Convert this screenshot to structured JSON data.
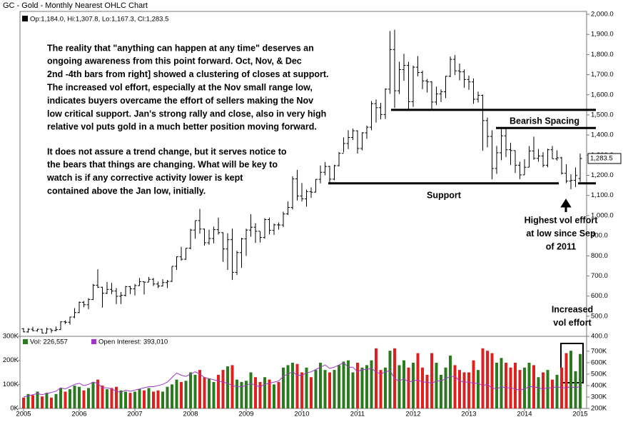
{
  "chart_data": {
    "type": "ohlc",
    "title": "GC - Gold - Monthly Nearest OHLC Chart",
    "ohlc_legend": "Op:1,184.0, Hi:1,307.8, Lo:1,167.3, Cl:1,283.5",
    "categories": [
      "2005",
      null,
      null,
      null,
      null,
      null,
      null,
      null,
      null,
      null,
      null,
      null,
      "2006",
      null,
      null,
      null,
      null,
      null,
      null,
      null,
      null,
      null,
      null,
      null,
      "2007",
      null,
      null,
      null,
      null,
      null,
      null,
      null,
      null,
      null,
      null,
      null,
      "2008",
      null,
      null,
      null,
      null,
      null,
      null,
      null,
      null,
      null,
      null,
      null,
      "2009",
      null,
      null,
      null,
      null,
      null,
      null,
      null,
      null,
      null,
      null,
      null,
      "2010",
      null,
      null,
      null,
      null,
      null,
      null,
      null,
      null,
      null,
      null,
      null,
      "2011",
      null,
      null,
      null,
      null,
      null,
      null,
      null,
      null,
      null,
      null,
      null,
      "2012",
      null,
      null,
      null,
      null,
      null,
      null,
      null,
      null,
      null,
      null,
      null,
      "2013",
      null,
      null,
      null,
      null,
      null,
      null,
      null,
      null,
      null,
      null,
      null,
      "2014",
      null,
      null,
      null,
      null,
      null,
      null,
      null,
      null,
      null,
      null,
      null,
      "2015"
    ],
    "ohlc": [
      [
        438,
        441,
        420,
        422
      ],
      [
        422,
        440,
        418,
        435
      ],
      [
        435,
        447,
        425,
        428
      ],
      [
        428,
        438,
        423,
        435
      ],
      [
        435,
        437,
        414,
        416
      ],
      [
        416,
        443,
        415,
        436
      ],
      [
        436,
        437,
        417,
        429
      ],
      [
        429,
        448,
        425,
        433
      ],
      [
        433,
        475,
        432,
        472
      ],
      [
        472,
        479,
        461,
        470
      ],
      [
        470,
        497,
        458,
        496
      ],
      [
        496,
        540,
        490,
        518
      ],
      [
        518,
        573,
        515,
        569
      ],
      [
        569,
        575,
        545,
        557
      ],
      [
        557,
        590,
        535,
        583
      ],
      [
        583,
        660,
        580,
        654
      ],
      [
        654,
        733,
        640,
        644
      ],
      [
        644,
        646,
        543,
        614
      ],
      [
        614,
        670,
        610,
        633
      ],
      [
        633,
        665,
        610,
        625
      ],
      [
        625,
        640,
        560,
        599
      ],
      [
        599,
        620,
        560,
        604
      ],
      [
        604,
        650,
        598,
        647
      ],
      [
        647,
        650,
        610,
        636
      ],
      [
        636,
        660,
        603,
        652
      ],
      [
        652,
        690,
        650,
        672
      ],
      [
        672,
        672,
        608,
        669
      ],
      [
        669,
        695,
        670,
        683
      ],
      [
        683,
        690,
        650,
        660
      ],
      [
        660,
        672,
        640,
        650
      ],
      [
        650,
        684,
        648,
        667
      ],
      [
        667,
        680,
        640,
        673
      ],
      [
        673,
        748,
        670,
        748
      ],
      [
        748,
        797,
        730,
        795
      ],
      [
        795,
        845,
        776,
        783
      ],
      [
        783,
        838,
        780,
        838
      ],
      [
        838,
        934,
        832,
        928
      ],
      [
        928,
        975,
        885,
        975
      ],
      [
        975,
        1033,
        910,
        933
      ],
      [
        933,
        935,
        851,
        865
      ],
      [
        865,
        930,
        855,
        886
      ],
      [
        886,
        945,
        862,
        930
      ],
      [
        930,
        990,
        905,
        915
      ],
      [
        915,
        917,
        770,
        834
      ],
      [
        834,
        912,
        730,
        880
      ],
      [
        880,
        935,
        680,
        718
      ],
      [
        718,
        825,
        705,
        816
      ],
      [
        816,
        889,
        740,
        884
      ],
      [
        884,
        935,
        800,
        928
      ],
      [
        928,
        1007,
        895,
        942
      ],
      [
        942,
        962,
        864,
        922
      ],
      [
        922,
        921,
        866,
        891
      ],
      [
        891,
        987,
        885,
        980
      ],
      [
        980,
        990,
        906,
        927
      ],
      [
        927,
        960,
        904,
        954
      ],
      [
        954,
        966,
        930,
        953
      ],
      [
        953,
        1019,
        943,
        1008
      ],
      [
        1008,
        1070,
        1003,
        1040
      ],
      [
        1040,
        1195,
        1030,
        1182
      ],
      [
        1182,
        1227,
        1075,
        1097
      ],
      [
        1097,
        1162,
        1070,
        1083
      ],
      [
        1083,
        1129,
        1045,
        1119
      ],
      [
        1119,
        1140,
        1088,
        1116
      ],
      [
        1116,
        1181,
        1115,
        1180
      ],
      [
        1180,
        1249,
        1160,
        1215
      ],
      [
        1215,
        1266,
        1200,
        1244
      ],
      [
        1244,
        1247,
        1156,
        1181
      ],
      [
        1181,
        1252,
        1175,
        1248
      ],
      [
        1248,
        1316,
        1244,
        1309
      ],
      [
        1309,
        1388,
        1314,
        1358
      ],
      [
        1358,
        1424,
        1330,
        1388
      ],
      [
        1388,
        1432,
        1375,
        1421
      ],
      [
        1421,
        1423,
        1308,
        1333
      ],
      [
        1333,
        1414,
        1324,
        1411
      ],
      [
        1411,
        1447,
        1381,
        1439
      ],
      [
        1439,
        1569,
        1424,
        1556
      ],
      [
        1556,
        1577,
        1462,
        1536
      ],
      [
        1536,
        1560,
        1478,
        1502
      ],
      [
        1502,
        1632,
        1480,
        1628
      ],
      [
        1628,
        1917,
        1605,
        1825
      ],
      [
        1825,
        1923,
        1535,
        1620
      ],
      [
        1620,
        1764,
        1604,
        1725
      ],
      [
        1725,
        1804,
        1670,
        1746
      ],
      [
        1746,
        1764,
        1523,
        1566
      ],
      [
        1566,
        1745,
        1540,
        1737
      ],
      [
        1737,
        1792,
        1692,
        1711
      ],
      [
        1711,
        1720,
        1628,
        1669
      ],
      [
        1669,
        1678,
        1611,
        1664
      ],
      [
        1664,
        1668,
        1527,
        1564
      ],
      [
        1564,
        1641,
        1549,
        1604
      ],
      [
        1604,
        1627,
        1564,
        1615
      ],
      [
        1615,
        1694,
        1583,
        1692
      ],
      [
        1692,
        1790,
        1688,
        1776
      ],
      [
        1776,
        1798,
        1698,
        1719
      ],
      [
        1719,
        1755,
        1672,
        1714
      ],
      [
        1714,
        1726,
        1635,
        1676
      ],
      [
        1676,
        1696,
        1625,
        1664
      ],
      [
        1664,
        1681,
        1555,
        1578
      ],
      [
        1578,
        1616,
        1562,
        1597
      ],
      [
        1597,
        1601,
        1322,
        1472
      ],
      [
        1472,
        1487,
        1339,
        1393
      ],
      [
        1393,
        1424,
        1180,
        1234
      ],
      [
        1234,
        1346,
        1207,
        1312
      ],
      [
        1312,
        1434,
        1275,
        1396
      ],
      [
        1396,
        1434,
        1291,
        1327
      ],
      [
        1327,
        1362,
        1251,
        1323
      ],
      [
        1323,
        1323,
        1211,
        1250
      ],
      [
        1250,
        1268,
        1181,
        1202
      ],
      [
        1202,
        1280,
        1202,
        1240
      ],
      [
        1240,
        1345,
        1240,
        1321
      ],
      [
        1321,
        1392,
        1277,
        1284
      ],
      [
        1284,
        1331,
        1268,
        1296
      ],
      [
        1296,
        1315,
        1240,
        1250
      ],
      [
        1250,
        1332,
        1240,
        1327
      ],
      [
        1327,
        1346,
        1281,
        1282
      ],
      [
        1282,
        1324,
        1273,
        1287
      ],
      [
        1287,
        1292,
        1204,
        1210
      ],
      [
        1210,
        1255,
        1161,
        1171
      ],
      [
        1171,
        1205,
        1131,
        1175
      ],
      [
        1175,
        1239,
        1142,
        1199
      ],
      [
        1184.0,
        1307.8,
        1167.3,
        1283.5
      ]
    ],
    "color": "#000000",
    "ylim": [
      400,
      2000
    ],
    "yticks": [
      {
        "value": 400,
        "label": "400.0"
      },
      {
        "value": 500,
        "label": "500.0"
      },
      {
        "value": 600,
        "label": "600.0"
      },
      {
        "value": 700,
        "label": "700.0"
      },
      {
        "value": 800,
        "label": "800.0"
      },
      {
        "value": 900,
        "label": "900.0"
      },
      {
        "value": 1000,
        "label": "1,000.0"
      },
      {
        "value": 1100,
        "label": "1,100.0"
      },
      {
        "value": 1200,
        "label": "1,200.0"
      },
      {
        "value": 1300,
        "label": "1,300.0"
      },
      {
        "value": 1400,
        "label": "1,400.0"
      },
      {
        "value": 1500,
        "label": "1,500.0"
      },
      {
        "value": 1600,
        "label": "1,600.0"
      },
      {
        "value": 1700,
        "label": "1,700.0"
      },
      {
        "value": 1800,
        "label": "1,800.0"
      },
      {
        "value": 1900,
        "label": "1,900.0"
      },
      {
        "value": 2000,
        "label": "2,000.0"
      }
    ],
    "last_price": {
      "value": 1283.5,
      "label": "1,283.5"
    },
    "reference_lines": [
      1525,
      1435,
      1160
    ],
    "volume": {
      "legend_label": "Vol: 226,557",
      "up_color": "#2a7a1e",
      "down_color": "#e0201c",
      "values": [
        45000,
        60000,
        55000,
        70000,
        50000,
        65000,
        45000,
        60000,
        85000,
        70000,
        80000,
        95000,
        90000,
        75000,
        85000,
        110000,
        120000,
        95000,
        80000,
        85000,
        90000,
        75000,
        70000,
        65000,
        70000,
        80000,
        75000,
        85000,
        70000,
        75000,
        70000,
        90000,
        100000,
        120000,
        110000,
        115000,
        150000,
        140000,
        160000,
        130000,
        125000,
        110000,
        140000,
        160000,
        175000,
        180000,
        120000,
        110000,
        115000,
        150000,
        130000,
        110000,
        130000,
        120000,
        100000,
        110000,
        170000,
        180000,
        190000,
        185000,
        150000,
        170000,
        130000,
        160000,
        190000,
        160000,
        150000,
        160000,
        180000,
        195000,
        200000,
        150000,
        190000,
        170000,
        180000,
        200000,
        250000,
        160000,
        170000,
        240000,
        250000,
        180000,
        200000,
        170000,
        190000,
        230000,
        170000,
        140000,
        230000,
        190000,
        140000,
        170000,
        220000,
        180000,
        160000,
        150000,
        150000,
        200000,
        160000,
        250000,
        240000,
        230000,
        190000,
        210000,
        190000,
        170000,
        190000,
        160000,
        170000,
        190000,
        180000,
        130000,
        150000,
        160000,
        120000,
        140000,
        170000,
        230000,
        240000,
        155000,
        226557
      ],
      "ylim": [
        0,
        300000
      ],
      "yticks": [
        {
          "value": 0,
          "label": "0K"
        },
        {
          "value": 100000,
          "label": "100K"
        },
        {
          "value": 200000,
          "label": "200K"
        },
        {
          "value": 300000,
          "label": "300K"
        }
      ]
    },
    "open_interest": {
      "legend_label": "Open Interest: 393,010",
      "color": "#a035c8",
      "axis": "y2",
      "values": [
        300000,
        310000,
        320000,
        330000,
        320000,
        330000,
        340000,
        350000,
        380000,
        370000,
        390000,
        410000,
        420000,
        400000,
        410000,
        430000,
        420000,
        380000,
        380000,
        370000,
        350000,
        340000,
        360000,
        350000,
        360000,
        370000,
        380000,
        390000,
        390000,
        400000,
        410000,
        430000,
        470000,
        510000,
        490000,
        480000,
        500000,
        520000,
        500000,
        470000,
        460000,
        450000,
        440000,
        430000,
        420000,
        400000,
        390000,
        390000,
        400000,
        420000,
        400000,
        390000,
        410000,
        420000,
        430000,
        440000,
        480000,
        500000,
        520000,
        490000,
        490000,
        510000,
        520000,
        540000,
        560000,
        580000,
        550000,
        560000,
        580000,
        600000,
        560000,
        560000,
        520000,
        540000,
        540000,
        550000,
        520000,
        500000,
        520000,
        530000,
        460000,
        440000,
        460000,
        430000,
        440000,
        450000,
        430000,
        430000,
        420000,
        440000,
        440000,
        460000,
        480000,
        480000,
        440000,
        430000,
        430000,
        420000,
        420000,
        400000,
        410000,
        380000,
        370000,
        390000,
        380000,
        380000,
        370000,
        360000,
        370000,
        390000,
        390000,
        380000,
        370000,
        380000,
        380000,
        390000,
        380000,
        380000,
        390000,
        380000,
        393010
      ],
      "y2lim": [
        200000,
        830000
      ],
      "y2ticks": [
        {
          "value": 200000,
          "label": "200K"
        },
        {
          "value": 300000,
          "label": "300K"
        },
        {
          "value": 400000,
          "label": "400K"
        },
        {
          "value": 500000,
          "label": "500K"
        },
        {
          "value": 600000,
          "label": "600K"
        },
        {
          "value": 700000,
          "label": "700K"
        }
      ]
    },
    "annotations": {
      "paragraph_1": [
        "The reality that \"anything can happen at any time\" deserves an",
        "ongoing awareness from this point forward.  Oct, Nov, & Dec",
        "2nd -4th bars from right] showed a clustering of closes at support.",
        "The increased vol effort, especially at the Nov small range low,",
        "indicates buyers overcame the effort of sellers making the Nov",
        "low critical support.  Jan's strong rally and close, also in very high",
        "relative vol puts gold in a much better position moving forward."
      ],
      "paragraph_2": [
        "It does not assure a trend change, but it serves notice to",
        "the bears that things are changing.  What will be key to",
        "watch is if any corrective activity lower is kept",
        "contained above the Jan low, initially."
      ],
      "bearish_spacing": "Bearish Spacing",
      "support": "Support",
      "highest_vol": [
        "Highest vol effort",
        "at low since Sep",
        "of 2011"
      ],
      "increased_vol": [
        "Increased",
        "vol effort"
      ]
    }
  }
}
